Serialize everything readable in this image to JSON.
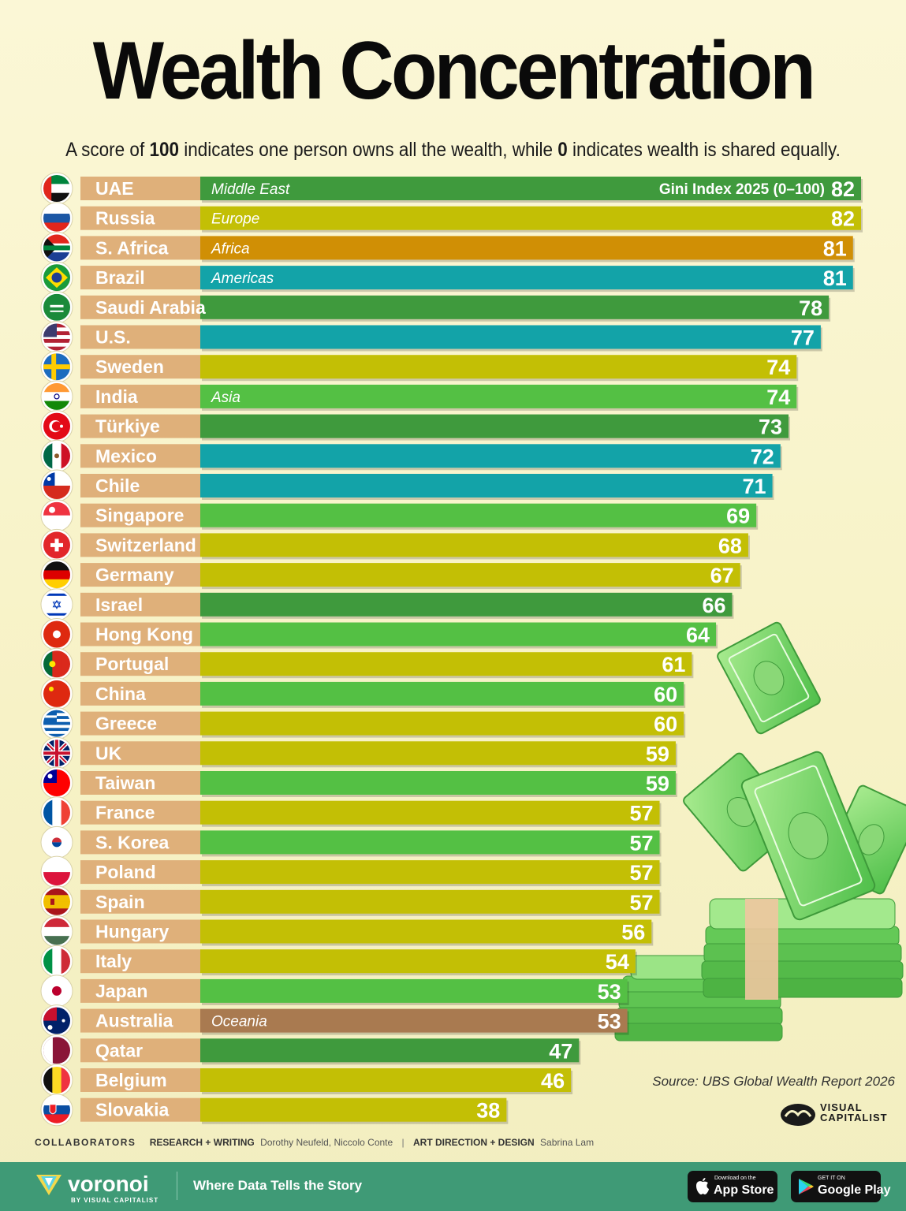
{
  "title": "Wealth Concentration",
  "subtitle": {
    "before": "A score of ",
    "bold1": "100",
    "middle": " indicates one person owns all the wealth, while ",
    "bold2": "0",
    "after": " indicates wealth is shared equally."
  },
  "colors": {
    "Middle East": "#3f9a3d",
    "Europe": "#c3bf05",
    "Africa": "#d08f05",
    "Americas": "#13a3a8",
    "Asia": "#54c044",
    "Oceania": "#a97a50",
    "label_bg": "#dfb07a"
  },
  "chart_data": {
    "type": "bar",
    "orientation": "horizontal",
    "value_label": "Gini Index 2025 (0–100)",
    "xlim": [
      0,
      100
    ],
    "grid": false,
    "legend": "inline region labels on first bar of each region",
    "categories": [
      "UAE",
      "Russia",
      "S. Africa",
      "Brazil",
      "Saudi Arabia",
      "U.S.",
      "Sweden",
      "India",
      "Türkiye",
      "Mexico",
      "Chile",
      "Singapore",
      "Switzerland",
      "Germany",
      "Israel",
      "Hong Kong",
      "Portugal",
      "China",
      "Greece",
      "UK",
      "Taiwan",
      "France",
      "S. Korea",
      "Poland",
      "Spain",
      "Hungary",
      "Italy",
      "Japan",
      "Australia",
      "Qatar",
      "Belgium",
      "Slovakia"
    ],
    "values": [
      82,
      82,
      81,
      81,
      78,
      77,
      74,
      74,
      73,
      72,
      71,
      69,
      68,
      67,
      66,
      64,
      61,
      60,
      60,
      59,
      59,
      57,
      57,
      57,
      57,
      56,
      54,
      53,
      53,
      47,
      46,
      38
    ],
    "regions": [
      "Middle East",
      "Europe",
      "Africa",
      "Americas",
      "Middle East",
      "Americas",
      "Europe",
      "Asia",
      "Middle East",
      "Americas",
      "Americas",
      "Asia",
      "Europe",
      "Europe",
      "Middle East",
      "Asia",
      "Europe",
      "Asia",
      "Europe",
      "Europe",
      "Asia",
      "Europe",
      "Asia",
      "Europe",
      "Europe",
      "Europe",
      "Europe",
      "Asia",
      "Oceania",
      "Middle East",
      "Europe",
      "Europe"
    ],
    "region_labels": [
      {
        "index": 0,
        "text": "Middle East"
      },
      {
        "index": 1,
        "text": "Europe"
      },
      {
        "index": 2,
        "text": "Africa"
      },
      {
        "index": 3,
        "text": "Americas"
      },
      {
        "index": 7,
        "text": "Asia"
      },
      {
        "index": 28,
        "text": "Oceania"
      }
    ],
    "flags": [
      "UAE flag",
      "Russia flag",
      "South Africa flag",
      "Brazil flag",
      "Saudi Arabia flag",
      "U.S. flag",
      "Sweden flag",
      "India flag",
      "Türkiye flag",
      "Mexico flag",
      "Chile flag",
      "Singapore flag",
      "Switzerland flag",
      "Germany flag",
      "Israel flag",
      "Hong Kong flag",
      "Portugal flag",
      "China flag",
      "Greece flag",
      "UK flag",
      "Taiwan flag",
      "France flag",
      "S. Korea flag",
      "Poland flag",
      "Spain flag",
      "Hungary flag",
      "Italy flag",
      "Japan flag",
      "Australia flag",
      "Qatar flag",
      "Belgium flag",
      "Slovakia flag"
    ]
  },
  "source": "Source: UBS Global Wealth Report 2026",
  "vc_logo": {
    "line1": "VISUAL",
    "line2": "CAPITALIST"
  },
  "credits": {
    "heading": "COLLABORATORS",
    "role1": "RESEARCH + WRITING",
    "names1": "Dorothy Neufeld, Niccolo Conte",
    "separator": "|",
    "role2": "ART DIRECTION + DESIGN",
    "names2": "Sabrina Lam"
  },
  "footer": {
    "brand": "voronoi",
    "brand_sub": "BY VISUAL CAPITALIST",
    "tagline": "Where Data Tells the Story",
    "app_store_small": "Download on the",
    "app_store_big": "App Store",
    "google_small": "GET IT ON",
    "google_big": "Google Play"
  },
  "decoration": "money-bills-illustration"
}
